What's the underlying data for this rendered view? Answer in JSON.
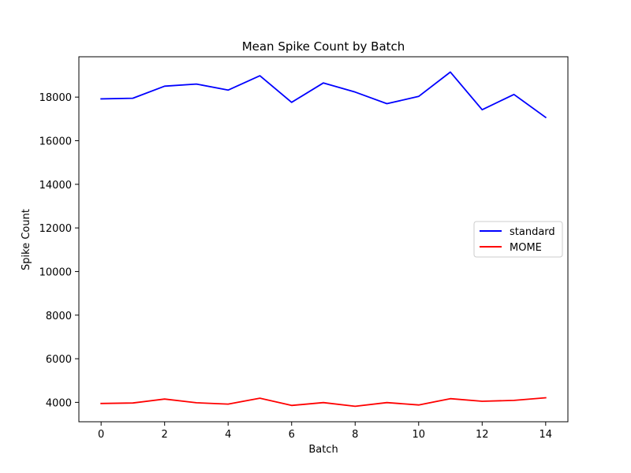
{
  "chart_data": {
    "type": "line",
    "title": "Mean Spike Count by Batch",
    "xlabel": "Batch",
    "ylabel": "Spike Count",
    "x": [
      0,
      1,
      2,
      3,
      4,
      5,
      6,
      7,
      8,
      9,
      10,
      11,
      12,
      13,
      14
    ],
    "xlim": [
      -0.7,
      14.7
    ],
    "ylim": [
      3110,
      19850
    ],
    "xticks": [
      0,
      2,
      4,
      6,
      8,
      10,
      12,
      14
    ],
    "yticks": [
      4000,
      6000,
      8000,
      10000,
      12000,
      14000,
      16000,
      18000
    ],
    "grid": false,
    "legend_position": "center-right",
    "series": [
      {
        "name": "standard",
        "color": "#0000ff",
        "values": [
          17920,
          17950,
          18500,
          18600,
          18320,
          18980,
          17760,
          18650,
          18230,
          17700,
          18030,
          19150,
          17420,
          18120,
          17070
        ]
      },
      {
        "name": "MOME",
        "color": "#ff0000",
        "values": [
          3950,
          3970,
          4150,
          3980,
          3920,
          4190,
          3860,
          3990,
          3820,
          3990,
          3880,
          4170,
          4050,
          4090,
          4210
        ]
      }
    ]
  }
}
